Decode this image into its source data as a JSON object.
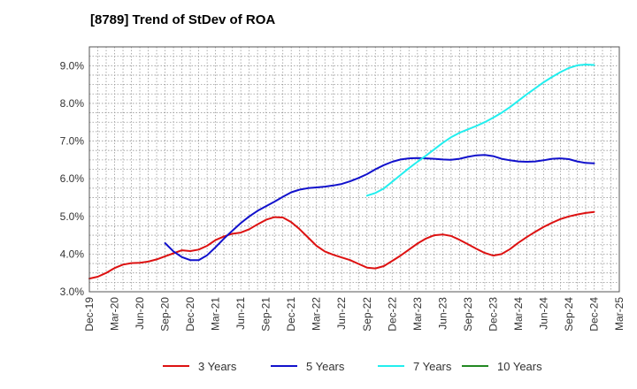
{
  "title": "[8789]  Trend of StDev of ROA",
  "chart_data": {
    "type": "line",
    "title": "[8789]  Trend of StDev of ROA",
    "xlabel": "",
    "ylabel": "",
    "ylim": [
      3.0,
      9.5
    ],
    "yticks": [
      3.0,
      4.0,
      5.0,
      6.0,
      7.0,
      8.0,
      9.0
    ],
    "ytick_labels": [
      "3.0%",
      "4.0%",
      "5.0%",
      "6.0%",
      "7.0%",
      "8.0%",
      "9.0%"
    ],
    "xticks": [
      "Dec-19",
      "Mar-20",
      "Jun-20",
      "Sep-20",
      "Dec-20",
      "Mar-21",
      "Jun-21",
      "Sep-21",
      "Dec-21",
      "Mar-22",
      "Jun-22",
      "Sep-22",
      "Dec-22",
      "Mar-23",
      "Jun-23",
      "Sep-23",
      "Dec-23",
      "Mar-24",
      "Jun-24",
      "Sep-24",
      "Dec-24",
      "Mar-25"
    ],
    "grid": true,
    "legend_position": "bottom",
    "series": [
      {
        "name": "3 Years",
        "color": "#dd1111",
        "x": [
          "Dec-19",
          "Jan-20",
          "Feb-20",
          "Mar-20",
          "Apr-20",
          "May-20",
          "Jun-20",
          "Jul-20",
          "Aug-20",
          "Sep-20",
          "Oct-20",
          "Nov-20",
          "Dec-20",
          "Jan-21",
          "Feb-21",
          "Mar-21",
          "Apr-21",
          "May-21",
          "Jun-21",
          "Jul-21",
          "Aug-21",
          "Sep-21",
          "Oct-21",
          "Nov-21",
          "Dec-21",
          "Jan-22",
          "Feb-22",
          "Mar-22",
          "Apr-22",
          "May-22",
          "Jun-22",
          "Jul-22",
          "Aug-22",
          "Sep-22",
          "Oct-22",
          "Nov-22",
          "Dec-22",
          "Jan-23",
          "Feb-23",
          "Mar-23",
          "Apr-23",
          "May-23",
          "Jun-23",
          "Jul-23",
          "Aug-23",
          "Sep-23",
          "Oct-23",
          "Nov-23",
          "Dec-23",
          "Jan-24",
          "Feb-24",
          "Mar-24",
          "Apr-24",
          "May-24",
          "Jun-24",
          "Jul-24",
          "Aug-24",
          "Sep-24",
          "Oct-24",
          "Nov-24",
          "Dec-24"
        ],
        "values": [
          3.35,
          3.4,
          3.5,
          3.63,
          3.72,
          3.76,
          3.77,
          3.8,
          3.86,
          3.94,
          4.02,
          4.1,
          4.08,
          4.12,
          4.22,
          4.37,
          4.47,
          4.54,
          4.57,
          4.66,
          4.79,
          4.91,
          4.98,
          4.97,
          4.85,
          4.66,
          4.44,
          4.22,
          4.07,
          3.98,
          3.91,
          3.84,
          3.74,
          3.64,
          3.62,
          3.68,
          3.82,
          3.96,
          4.12,
          4.28,
          4.41,
          4.5,
          4.52,
          4.48,
          4.38,
          4.26,
          4.14,
          4.03,
          3.96,
          4.0,
          4.13,
          4.3,
          4.45,
          4.59,
          4.72,
          4.83,
          4.93,
          5.0,
          5.05,
          5.09,
          5.12
        ]
      },
      {
        "name": "5 Years",
        "color": "#1111cc",
        "x": [
          "Sep-20",
          "Oct-20",
          "Nov-20",
          "Dec-20",
          "Jan-21",
          "Feb-21",
          "Mar-21",
          "Apr-21",
          "May-21",
          "Jun-21",
          "Jul-21",
          "Aug-21",
          "Sep-21",
          "Oct-21",
          "Nov-21",
          "Dec-21",
          "Jan-22",
          "Feb-22",
          "Mar-22",
          "Apr-22",
          "May-22",
          "Jun-22",
          "Jul-22",
          "Aug-22",
          "Sep-22",
          "Oct-22",
          "Nov-22",
          "Dec-22",
          "Jan-23",
          "Feb-23",
          "Mar-23",
          "Apr-23",
          "May-23",
          "Jun-23",
          "Jul-23",
          "Aug-23",
          "Sep-23",
          "Oct-23",
          "Nov-23",
          "Dec-23",
          "Jan-24",
          "Feb-24",
          "Mar-24",
          "Apr-24",
          "May-24",
          "Jun-24",
          "Jul-24",
          "Aug-24",
          "Sep-24",
          "Oct-24",
          "Nov-24",
          "Dec-24"
        ],
        "values": [
          4.29,
          4.07,
          3.92,
          3.84,
          3.84,
          3.97,
          4.18,
          4.41,
          4.62,
          4.82,
          5.0,
          5.15,
          5.27,
          5.39,
          5.52,
          5.64,
          5.71,
          5.75,
          5.77,
          5.79,
          5.82,
          5.86,
          5.93,
          6.02,
          6.12,
          6.25,
          6.36,
          6.45,
          6.51,
          6.54,
          6.55,
          6.54,
          6.53,
          6.51,
          6.5,
          6.53,
          6.58,
          6.62,
          6.63,
          6.6,
          6.53,
          6.49,
          6.46,
          6.45,
          6.46,
          6.49,
          6.53,
          6.54,
          6.52,
          6.46,
          6.42,
          6.41
        ]
      },
      {
        "name": "7 Years",
        "color": "#22eeee",
        "x": [
          "Sep-22",
          "Oct-22",
          "Nov-22",
          "Dec-22",
          "Jan-23",
          "Feb-23",
          "Mar-23",
          "Apr-23",
          "May-23",
          "Jun-23",
          "Jul-23",
          "Aug-23",
          "Sep-23",
          "Oct-23",
          "Nov-23",
          "Dec-23",
          "Jan-24",
          "Feb-24",
          "Mar-24",
          "Apr-24",
          "May-24",
          "Jun-24",
          "Jul-24",
          "Aug-24",
          "Sep-24",
          "Oct-24",
          "Nov-24",
          "Dec-24"
        ],
        "values": [
          5.55,
          5.62,
          5.74,
          5.92,
          6.1,
          6.28,
          6.45,
          6.61,
          6.78,
          6.95,
          7.1,
          7.22,
          7.31,
          7.4,
          7.5,
          7.62,
          7.75,
          7.9,
          8.07,
          8.24,
          8.4,
          8.56,
          8.7,
          8.83,
          8.94,
          9.01,
          9.03,
          9.02
        ]
      },
      {
        "name": "10 Years",
        "color": "#228822",
        "x": [],
        "values": []
      }
    ]
  }
}
